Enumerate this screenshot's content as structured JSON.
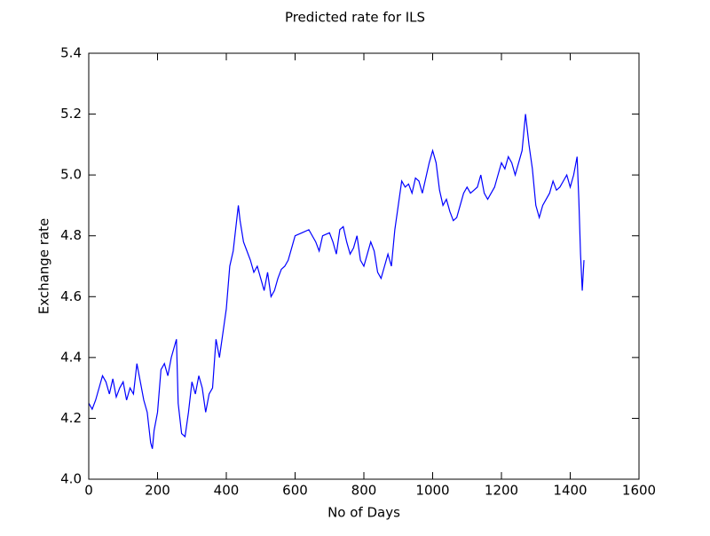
{
  "chart_data": {
    "type": "line",
    "title": "Predicted rate for ILS",
    "xlabel": "No of Days",
    "ylabel": "Exchange rate",
    "x": [
      0,
      10,
      20,
      30,
      40,
      50,
      60,
      70,
      80,
      90,
      100,
      110,
      120,
      130,
      140,
      150,
      160,
      170,
      180,
      185,
      190,
      200,
      210,
      220,
      230,
      240,
      250,
      255,
      260,
      270,
      280,
      290,
      300,
      310,
      320,
      330,
      340,
      350,
      360,
      370,
      380,
      390,
      400,
      410,
      420,
      430,
      435,
      440,
      450,
      460,
      470,
      480,
      490,
      500,
      510,
      520,
      530,
      540,
      550,
      560,
      570,
      580,
      590,
      600,
      620,
      640,
      660,
      670,
      680,
      700,
      710,
      720,
      730,
      740,
      750,
      760,
      770,
      780,
      790,
      800,
      810,
      820,
      830,
      840,
      850,
      860,
      870,
      880,
      890,
      900,
      910,
      920,
      930,
      940,
      950,
      960,
      970,
      980,
      990,
      1000,
      1010,
      1020,
      1030,
      1040,
      1050,
      1060,
      1070,
      1080,
      1090,
      1100,
      1110,
      1120,
      1130,
      1140,
      1150,
      1160,
      1170,
      1180,
      1190,
      1200,
      1210,
      1220,
      1230,
      1240,
      1250,
      1260,
      1270,
      1280,
      1290,
      1300,
      1310,
      1320,
      1330,
      1340,
      1350,
      1360,
      1370,
      1380,
      1390,
      1400,
      1410,
      1420,
      1425,
      1430,
      1435,
      1440
    ],
    "series": [
      {
        "name": "ILS",
        "color": "#0000ff",
        "values": [
          4.25,
          4.23,
          4.26,
          4.3,
          4.34,
          4.32,
          4.28,
          4.33,
          4.27,
          4.3,
          4.32,
          4.26,
          4.3,
          4.28,
          4.38,
          4.32,
          4.26,
          4.22,
          4.12,
          4.1,
          4.16,
          4.22,
          4.36,
          4.38,
          4.34,
          4.4,
          4.44,
          4.46,
          4.25,
          4.15,
          4.14,
          4.22,
          4.32,
          4.28,
          4.34,
          4.3,
          4.22,
          4.28,
          4.3,
          4.46,
          4.4,
          4.48,
          4.56,
          4.7,
          4.75,
          4.85,
          4.9,
          4.85,
          4.78,
          4.75,
          4.72,
          4.68,
          4.7,
          4.66,
          4.62,
          4.68,
          4.6,
          4.62,
          4.66,
          4.69,
          4.7,
          4.72,
          4.76,
          4.8,
          4.81,
          4.82,
          4.78,
          4.75,
          4.8,
          4.81,
          4.78,
          4.74,
          4.82,
          4.83,
          4.78,
          4.74,
          4.76,
          4.8,
          4.72,
          4.7,
          4.74,
          4.78,
          4.75,
          4.68,
          4.66,
          4.7,
          4.74,
          4.7,
          4.82,
          4.9,
          4.98,
          4.96,
          4.97,
          4.94,
          4.99,
          4.98,
          4.94,
          4.99,
          5.04,
          5.08,
          5.04,
          4.95,
          4.9,
          4.92,
          4.88,
          4.85,
          4.86,
          4.9,
          4.94,
          4.96,
          4.94,
          4.95,
          4.96,
          5.0,
          4.94,
          4.92,
          4.94,
          4.96,
          5.0,
          5.04,
          5.02,
          5.06,
          5.04,
          5.0,
          5.04,
          5.08,
          5.2,
          5.1,
          5.02,
          4.9,
          4.86,
          4.9,
          4.92,
          4.94,
          4.98,
          4.95,
          4.96,
          4.98,
          5.0,
          4.96,
          5.0,
          5.06,
          4.92,
          4.74,
          4.62,
          4.72
        ]
      }
    ],
    "xlim": [
      0,
      1600
    ],
    "xticks": [
      0,
      200,
      400,
      600,
      800,
      1000,
      1200,
      1400,
      1600
    ],
    "ylim": [
      4.0,
      5.4
    ],
    "yticks": [
      {
        "value": 4.0,
        "label": "4.0"
      },
      4.2,
      4.4,
      4.6,
      4.8,
      {
        "value": 5.0,
        "label": "5.0"
      },
      5.2,
      5.4
    ]
  }
}
